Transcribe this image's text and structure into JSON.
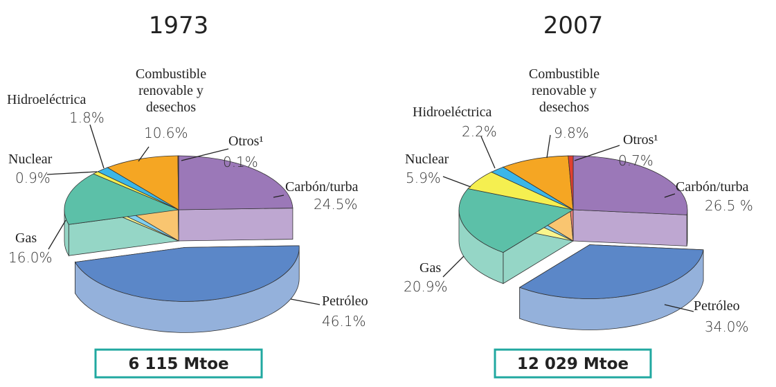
{
  "chart_data": [
    {
      "type": "pie3d",
      "title": "1973",
      "categories": [
        "Carbón/turba",
        "Petróleo",
        "Gas",
        "Nuclear",
        "Hidroeléctrica",
        "Combustible renovable y desechos",
        "Otros¹"
      ],
      "values": [
        24.5,
        46.1,
        16.0,
        0.9,
        1.8,
        10.6,
        0.1
      ],
      "value_labels": [
        "24.5%",
        "46.1%",
        "16.0%",
        "0.9%",
        "1.8%",
        "10.6%",
        "0.1%"
      ],
      "colors": [
        "#9b78b8",
        "#5b87c8",
        "#5cc0a8",
        "#f5ef50",
        "#3bb6e8",
        "#f5a623",
        "#e04030"
      ],
      "exploded": "Petróleo",
      "total_label": "6 115 Mtoe"
    },
    {
      "type": "pie3d",
      "title": "2007",
      "categories": [
        "Carbón/turba",
        "Petróleo",
        "Gas",
        "Nuclear",
        "Hidroeléctrica",
        "Combustible renovable y desechos",
        "Otros¹"
      ],
      "values": [
        26.5,
        34.0,
        20.9,
        5.9,
        2.2,
        9.8,
        0.7
      ],
      "value_labels": [
        "26.5 %",
        "34.0%",
        "20.9%",
        "5.9%",
        "2.2%",
        "9.8%",
        "0.7%"
      ],
      "colors": [
        "#9b78b8",
        "#5b87c8",
        "#5cc0a8",
        "#f5ef50",
        "#3bb6e8",
        "#f5a623",
        "#e04030"
      ],
      "exploded": "Petróleo",
      "total_label": "12 029 Mtoe"
    }
  ]
}
